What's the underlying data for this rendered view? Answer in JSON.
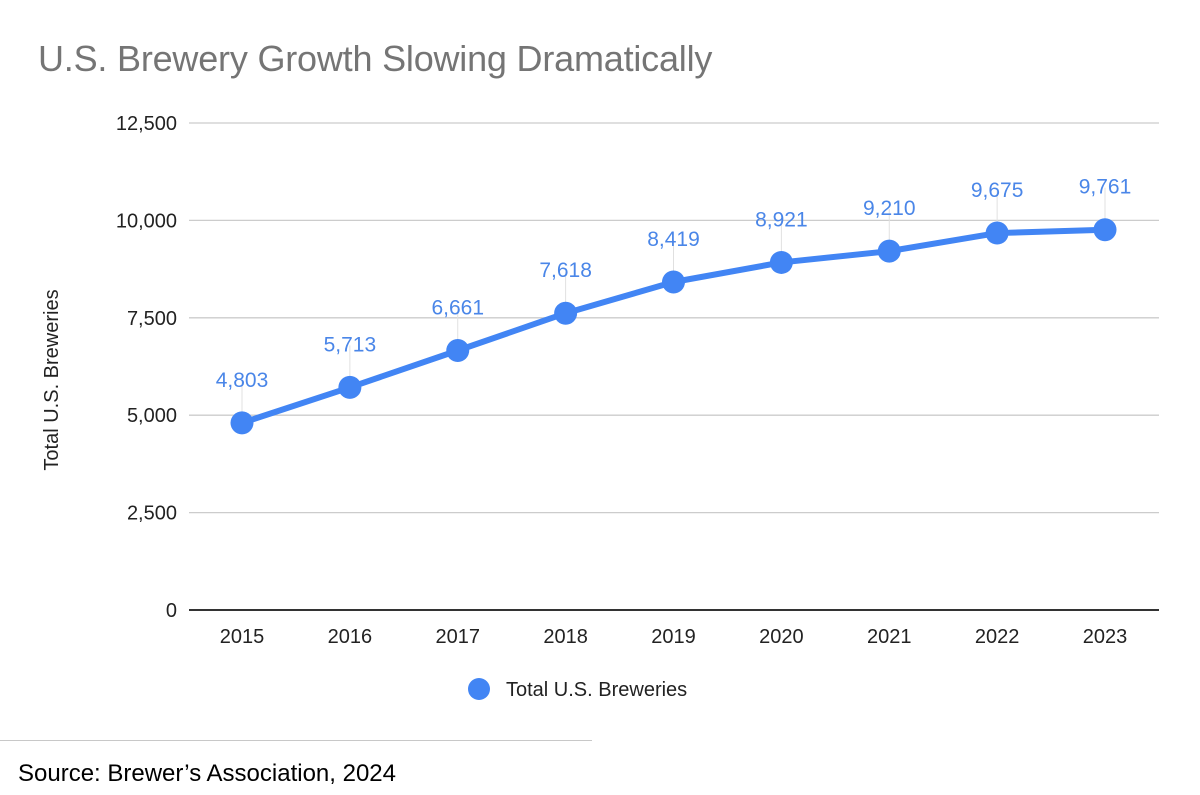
{
  "chart_data": {
    "type": "line",
    "title": "U.S. Brewery Growth Slowing Dramatically",
    "xlabel": "",
    "ylabel": "Total U.S. Breweries",
    "categories": [
      "2015",
      "2016",
      "2017",
      "2018",
      "2019",
      "2020",
      "2021",
      "2022",
      "2023"
    ],
    "series": [
      {
        "name": "Total U.S. Breweries",
        "color": "#4285f4",
        "values": [
          4803,
          5713,
          6661,
          7618,
          8419,
          8921,
          9210,
          9675,
          9761
        ],
        "data_labels": [
          "4,803",
          "5,713",
          "6,661",
          "7,618",
          "8,419",
          "8,921",
          "9,210",
          "9,675",
          "9,761"
        ]
      }
    ],
    "ylim": [
      0,
      12500
    ],
    "yticks": [
      0,
      2500,
      5000,
      7500,
      10000,
      12500
    ],
    "ytick_labels": [
      "0",
      "2,500",
      "5,000",
      "7,500",
      "10,000",
      "12,500"
    ],
    "grid": true,
    "legend": {
      "position": "bottom-center",
      "entries": [
        "Total U.S. Breweries"
      ]
    }
  },
  "footer": {
    "source": "Source: Brewer’s Association, 2024"
  }
}
